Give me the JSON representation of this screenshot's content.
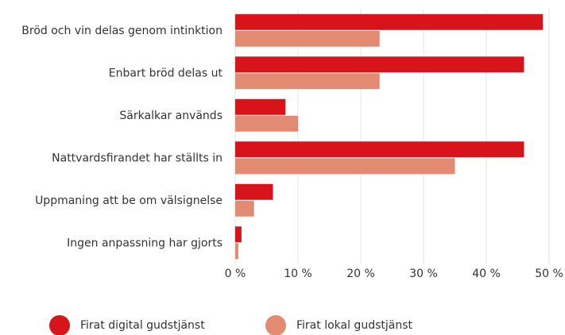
{
  "chart_data": {
    "type": "hbar",
    "categories": [
      "Bröd och vin delas genom intinktion",
      "Enbart bröd delas ut",
      "Särkalkar används",
      "Nattvardsfirandet har ställts in",
      "Uppmaning att be om välsignelse",
      "Ingen anpassning har gjorts"
    ],
    "series": [
      {
        "name": "Firat digital gudstjänst",
        "color": "#d7141a",
        "values": [
          49,
          46,
          8,
          46,
          6,
          1
        ]
      },
      {
        "name": "Firat lokal gudstjänst",
        "color": "#e38b72",
        "values": [
          23,
          23,
          10,
          35,
          3,
          0.5
        ]
      }
    ],
    "xlim": [
      0,
      50
    ],
    "xticks": [
      {
        "value": 0,
        "label": "0 %"
      },
      {
        "value": 10,
        "label": "10 %"
      },
      {
        "value": 20,
        "label": "20 %"
      },
      {
        "value": 30,
        "label": "30 %"
      },
      {
        "value": 40,
        "label": "40 %"
      },
      {
        "value": 50,
        "label": "50 %"
      }
    ],
    "grid": true
  }
}
